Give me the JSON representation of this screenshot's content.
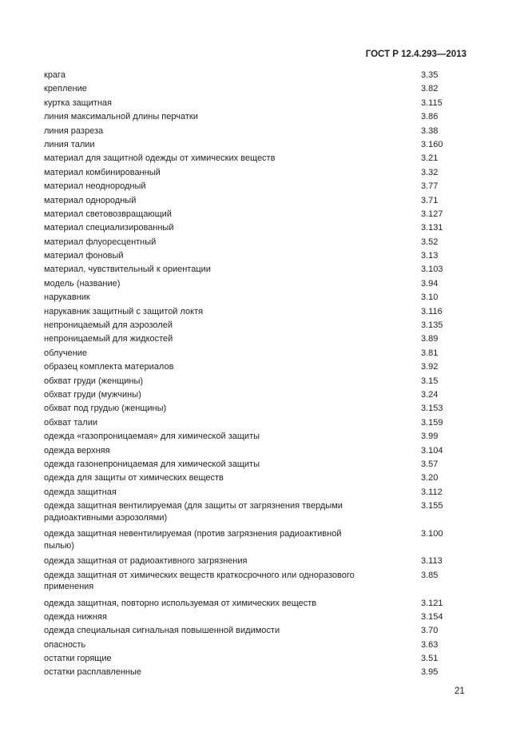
{
  "header": {
    "doc_code": "ГОСТ Р 12.4.293—2013"
  },
  "entries": [
    {
      "term": "крага",
      "ref": "3.35"
    },
    {
      "term": "крепление",
      "ref": "3.82"
    },
    {
      "term": "куртка защитная",
      "ref": "3.115"
    },
    {
      "term": "линия максимальной длины перчатки",
      "ref": "3.86"
    },
    {
      "term": "линия разреза",
      "ref": "3.38"
    },
    {
      "term": "линия талии",
      "ref": "3.160"
    },
    {
      "term": "материал для защитной одежды от химических веществ",
      "ref": "3.21"
    },
    {
      "term": "материал комбинированный",
      "ref": "3.32"
    },
    {
      "term": "материал неоднородный",
      "ref": "3.77"
    },
    {
      "term": "материал однородный",
      "ref": "3.71"
    },
    {
      "term": "материал световозвращающий",
      "ref": "3.127"
    },
    {
      "term": "материал специализированный",
      "ref": "3.131"
    },
    {
      "term": "материал флуоресцентный",
      "ref": "3.52"
    },
    {
      "term": "материал фоновый",
      "ref": "3.13"
    },
    {
      "term": "материал, чувствительный к ориентации",
      "ref": "3.103"
    },
    {
      "term": "модель (название)",
      "ref": "3.94"
    },
    {
      "term": "нарукавник",
      "ref": "3.10"
    },
    {
      "term": "нарукавник защитный с защитой локтя",
      "ref": "3.116"
    },
    {
      "term": "непроницаемый для аэрозолей",
      "ref": "3.135"
    },
    {
      "term": "непроницаемый для жидкостей",
      "ref": "3.89"
    },
    {
      "term": "облучение",
      "ref": "3.81"
    },
    {
      "term": "образец комплекта материалов",
      "ref": "3.92"
    },
    {
      "term": "обхват груди (женщины)",
      "ref": "3.15"
    },
    {
      "term": "обхват груди (мужчины)",
      "ref": "3.24"
    },
    {
      "term": "обхват под грудью (женщины)",
      "ref": "3.153"
    },
    {
      "term": "обхват талии",
      "ref": "3.159"
    },
    {
      "term": "одежда «газопроницаемая» для химической защиты",
      "ref": "3.99"
    },
    {
      "term": "одежда верхняя",
      "ref": "3.104"
    },
    {
      "term": "одежда газонепроницаемая для химической защиты",
      "ref": "3.57"
    },
    {
      "term": "одежда для защиты от химических веществ",
      "ref": "3.20"
    },
    {
      "term": "одежда защитная",
      "ref": "3.112"
    },
    {
      "term": "одежда защитная вентилируемая (для защиты от загрязнения твердыми радиоактивными аэрозолями)",
      "ref": "3.155"
    },
    {
      "term": "одежда защитная невентилируемая (против загрязнения радиоактивной пылью)",
      "ref": "3.100"
    },
    {
      "term": "одежда защитная от радиоактивного загрязнения",
      "ref": "3.113"
    },
    {
      "term": "одежда защитная от химических веществ краткосрочного или одноразового применения",
      "ref": "3.85"
    },
    {
      "term": "одежда защитная, повторно используемая от химических веществ",
      "ref": "3.121"
    },
    {
      "term": "одежда нижняя",
      "ref": "3.154"
    },
    {
      "term": "одежда специальная сигнальная повышенной видимости",
      "ref": "3.70"
    },
    {
      "term": "опасность",
      "ref": "3.63"
    },
    {
      "term": "остатки горящие",
      "ref": "3.51"
    },
    {
      "term": "остатки расплавленные",
      "ref": "3.95"
    }
  ],
  "footer": {
    "page_number": "21"
  }
}
